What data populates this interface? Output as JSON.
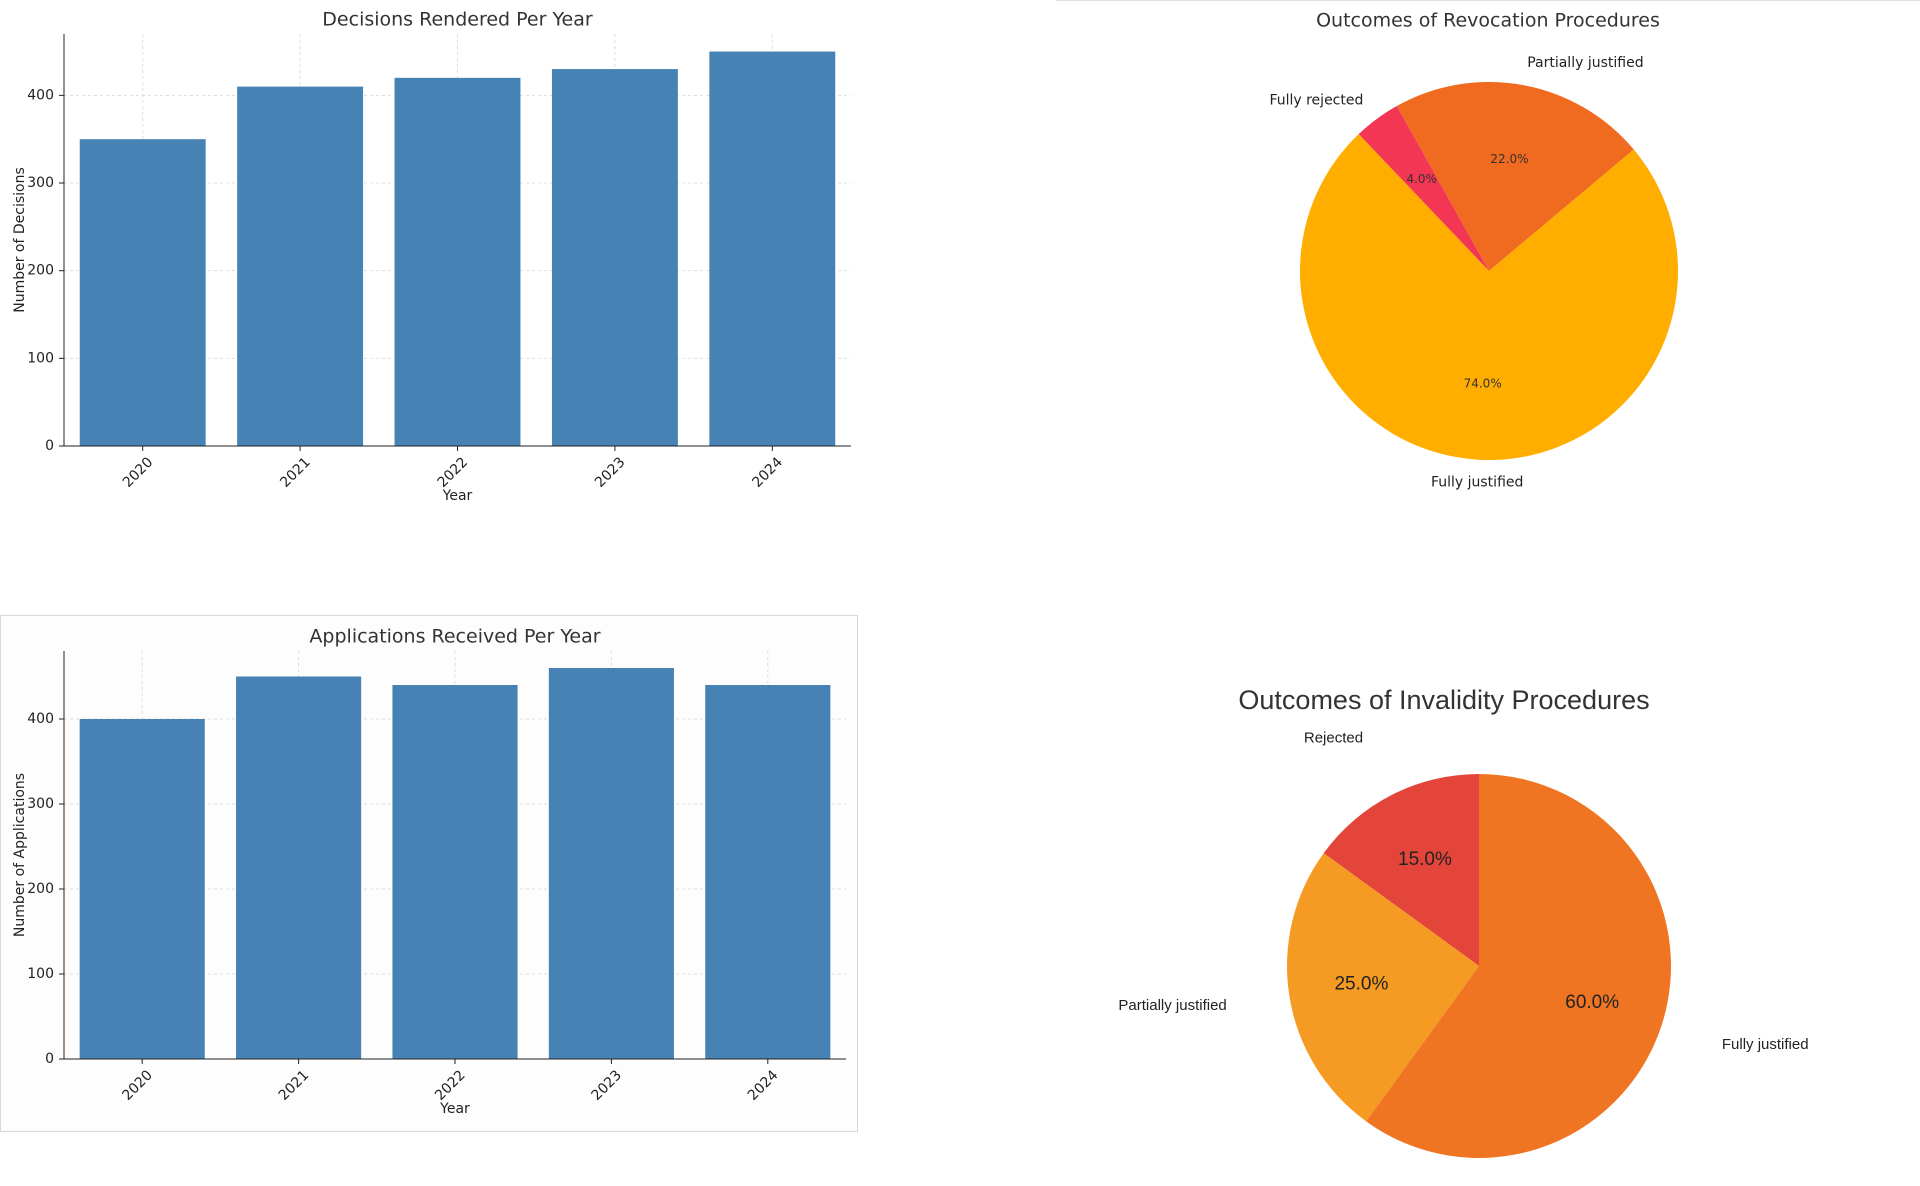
{
  "chart_data": [
    {
      "type": "bar",
      "title": "Decisions Rendered Per Year",
      "x_label": "Year",
      "y_label": "Number of Decisions",
      "categories": [
        "2020",
        "2021",
        "2022",
        "2023",
        "2024"
      ],
      "values": [
        350,
        410,
        420,
        430,
        450
      ],
      "color": "#4682b4",
      "ylim": [
        0,
        470
      ],
      "yticks": [
        0,
        100,
        200,
        300,
        400
      ],
      "grid": true
    },
    {
      "type": "pie",
      "title": "Outcomes of Revocation Procedures",
      "categories": [
        "Partially justified",
        "Fully rejected",
        "Fully justified"
      ],
      "values": [
        22,
        4,
        74
      ],
      "value_labels": [
        "22.0%",
        "4.0%",
        "74.0%"
      ],
      "colors": [
        "#f06a1f",
        "#f43655",
        "#ffae00"
      ]
    },
    {
      "type": "bar",
      "title": "Applications Received Per Year",
      "x_label": "Year",
      "y_label": "Number of Applications",
      "categories": [
        "2020",
        "2021",
        "2022",
        "2023",
        "2024"
      ],
      "values": [
        400,
        450,
        440,
        460,
        440
      ],
      "color": "#4682b4",
      "ylim": [
        0,
        480
      ],
      "yticks": [
        0,
        100,
        200,
        300,
        400
      ],
      "grid": true
    },
    {
      "type": "pie",
      "title": "Outcomes of Invalidity Procedures",
      "categories": [
        "Rejected",
        "Partially justified",
        "Fully justified"
      ],
      "values": [
        15,
        25,
        60
      ],
      "value_labels": [
        "15.0%",
        "25.0%",
        "60.0%"
      ],
      "colors": [
        "#e4453a",
        "#f59a23",
        "#f07522"
      ]
    }
  ]
}
